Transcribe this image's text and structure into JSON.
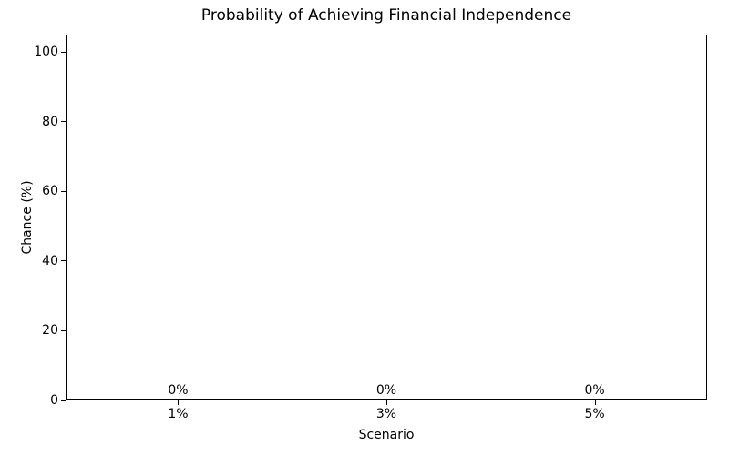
{
  "chart_data": {
    "type": "bar",
    "title": "Probability of Achieving Financial Independence",
    "xlabel": "Scenario",
    "ylabel": "Chance (%)",
    "categories": [
      "1%",
      "3%",
      "5%"
    ],
    "values": [
      0,
      0,
      0
    ],
    "bar_labels": [
      "0%",
      "0%",
      "0%"
    ],
    "yticks": [
      0,
      20,
      40,
      60,
      80,
      100
    ],
    "ylim": [
      0,
      105
    ],
    "grid": false,
    "legend": null,
    "colors": {
      "bar": "#b9dcb9",
      "axis": "#000000",
      "text": "#000000",
      "background": "#ffffff"
    }
  }
}
